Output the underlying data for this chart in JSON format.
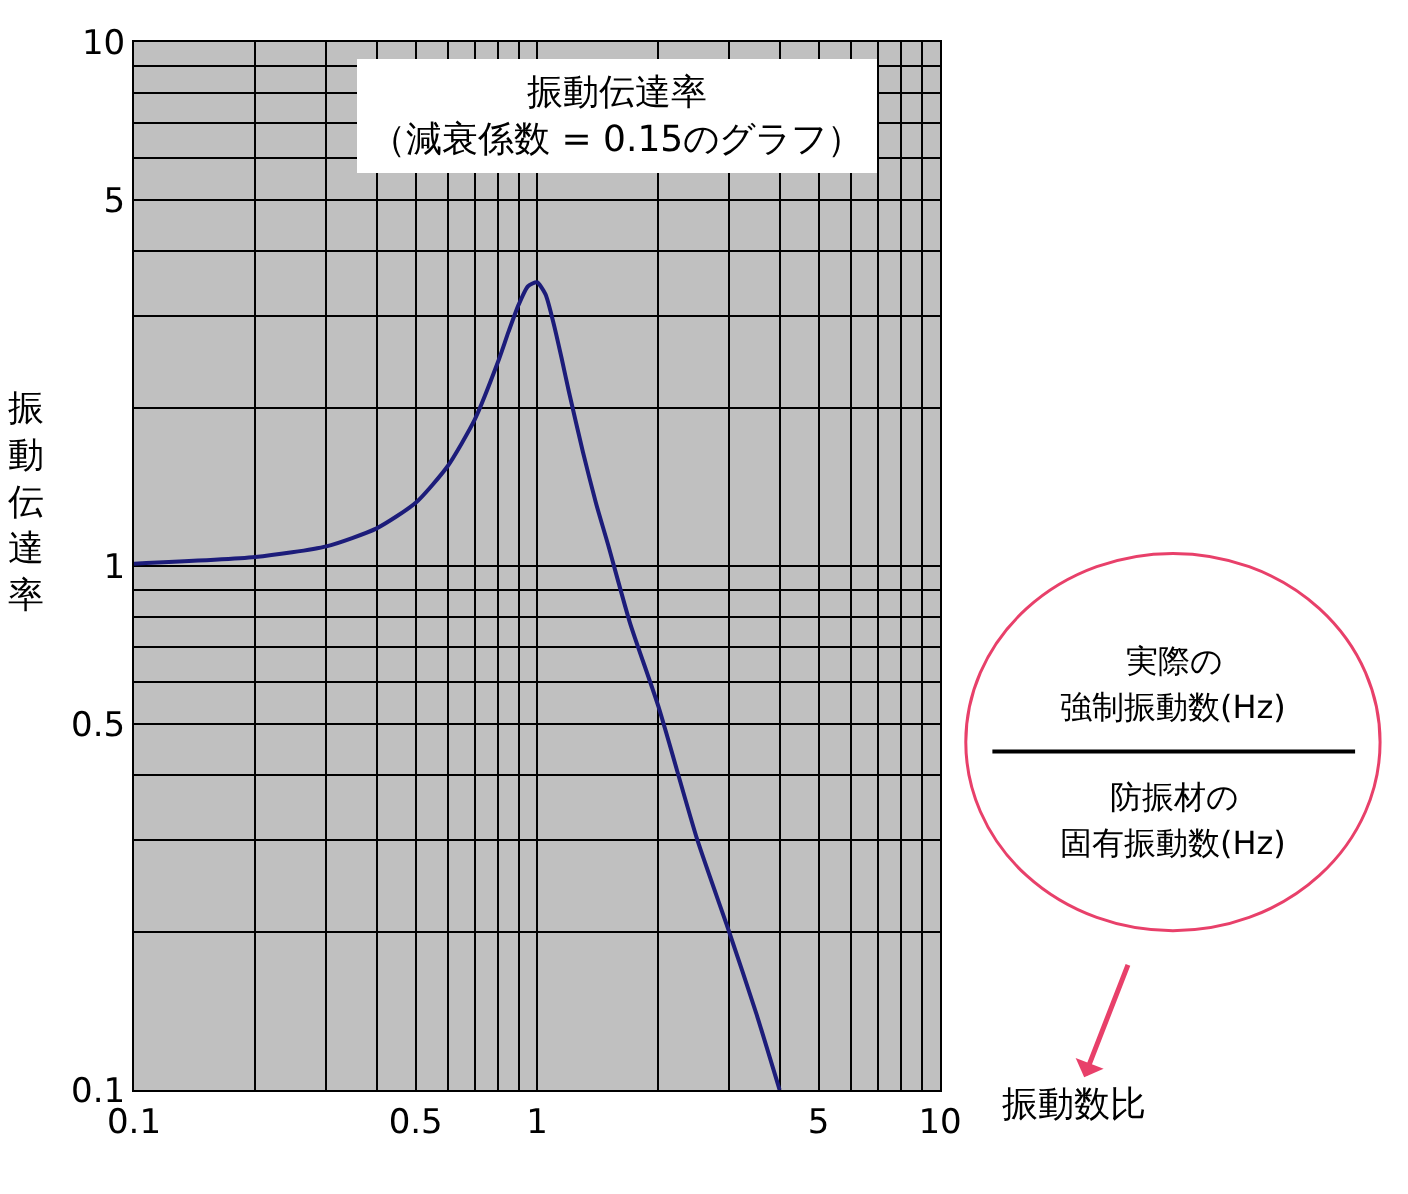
{
  "chart_data": {
    "type": "line",
    "title": "振動伝達率",
    "subtitle": "（減衰係数 = 0.15のグラフ）",
    "xlabel": "振動数比",
    "ylabel": "振動伝達率",
    "log": "xy",
    "grid": true,
    "marker": "none",
    "line_style": "solid",
    "annotations": [
      "実際の",
      "強制振動数(Hz)",
      "防振材の",
      "固有振動数(Hz)"
    ],
    "xlim": [
      0.1,
      10
    ],
    "ylim": [
      0.1,
      10
    ],
    "xticks": [
      0.1,
      {
        "value": 0.2,
        "label": null
      },
      {
        "value": 0.3,
        "label": null
      },
      {
        "value": 0.4,
        "label": null
      },
      0.5,
      {
        "value": 0.6,
        "label": null
      },
      {
        "value": 0.7,
        "label": null
      },
      {
        "value": 0.8,
        "label": null
      },
      {
        "value": 0.9,
        "label": null
      },
      1,
      {
        "value": 2,
        "label": null
      },
      {
        "value": 3,
        "label": null
      },
      {
        "value": 4,
        "label": null
      },
      5,
      {
        "value": 6,
        "label": null
      },
      {
        "value": 7,
        "label": null
      },
      {
        "value": 8,
        "label": null
      },
      {
        "value": 9,
        "label": null
      },
      10
    ],
    "yticks": [
      0.1,
      {
        "value": 0.2,
        "label": null
      },
      {
        "value": 0.3,
        "label": null
      },
      {
        "value": 0.4,
        "label": null
      },
      0.5,
      {
        "value": 0.6,
        "label": null
      },
      {
        "value": 0.7,
        "label": null
      },
      {
        "value": 0.8,
        "label": null
      },
      {
        "value": 0.9,
        "label": null
      },
      1,
      {
        "value": 2,
        "label": null
      },
      {
        "value": 3,
        "label": null
      },
      {
        "value": 4,
        "label": null
      },
      5,
      {
        "value": 6,
        "label": null
      },
      {
        "value": 7,
        "label": null
      },
      {
        "value": 8,
        "label": null
      },
      {
        "value": 9,
        "label": null
      },
      10
    ],
    "x": [
      0.1,
      0.2,
      0.3,
      0.4,
      0.5,
      0.6,
      0.7,
      0.8,
      0.85,
      0.9,
      0.95,
      1.0,
      1.05,
      1.1,
      1.15,
      1.2,
      1.3,
      1.4,
      1.5,
      1.7,
      2.0,
      2.5,
      3.0,
      3.5,
      4.0
    ],
    "series": [
      {
        "color": "#1c1c7a",
        "values": [
          1.01,
          1.04,
          1.09,
          1.18,
          1.32,
          1.55,
          1.9,
          2.45,
          2.8,
          3.15,
          3.42,
          3.48,
          3.3,
          2.9,
          2.5,
          2.15,
          1.65,
          1.32,
          1.1,
          0.78,
          0.54,
          0.3,
          0.2,
          0.14,
          0.1
        ]
      }
    ]
  }
}
